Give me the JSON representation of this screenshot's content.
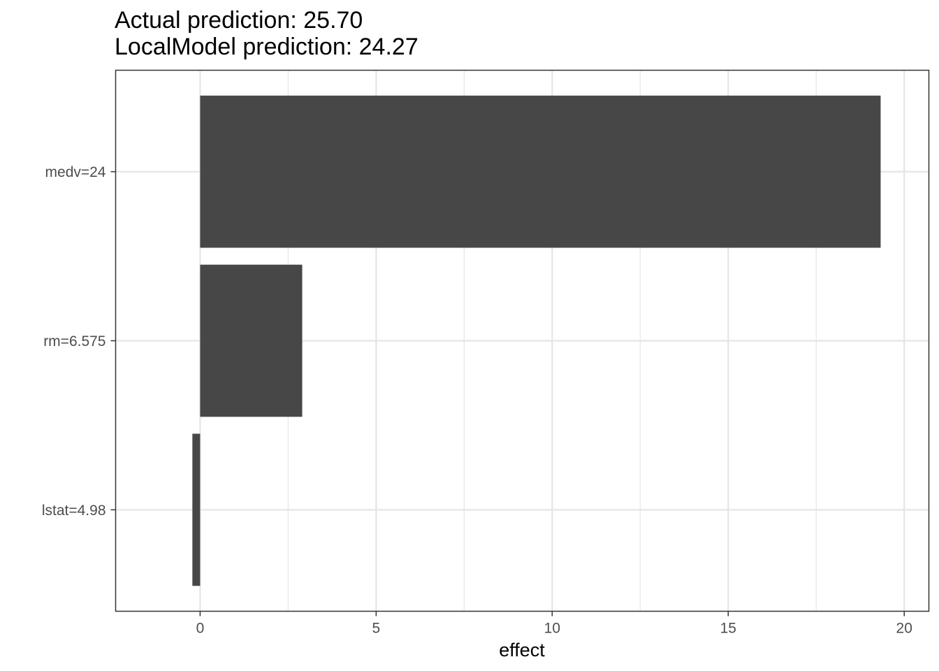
{
  "chart_data": {
    "type": "bar",
    "orientation": "horizontal",
    "title": "Actual prediction: 25.70",
    "subtitle": "LocalModel prediction: 24.27",
    "xlabel": "effect",
    "ylabel": "",
    "categories": [
      "medv=24",
      "rm=6.575",
      "lstat=4.98"
    ],
    "values": [
      19.33,
      2.9,
      -0.22
    ],
    "xlim": [
      -2.4,
      20.7
    ],
    "xticks": [
      0,
      5,
      10,
      15,
      20
    ],
    "xtick_labels": [
      "0",
      "5",
      "10",
      "15",
      "20"
    ],
    "grid": true,
    "colors": {
      "bar": "#474747",
      "grid": "#e5e5e5",
      "panel_border": "#333333",
      "tick_text": "#4d4d4d"
    }
  }
}
